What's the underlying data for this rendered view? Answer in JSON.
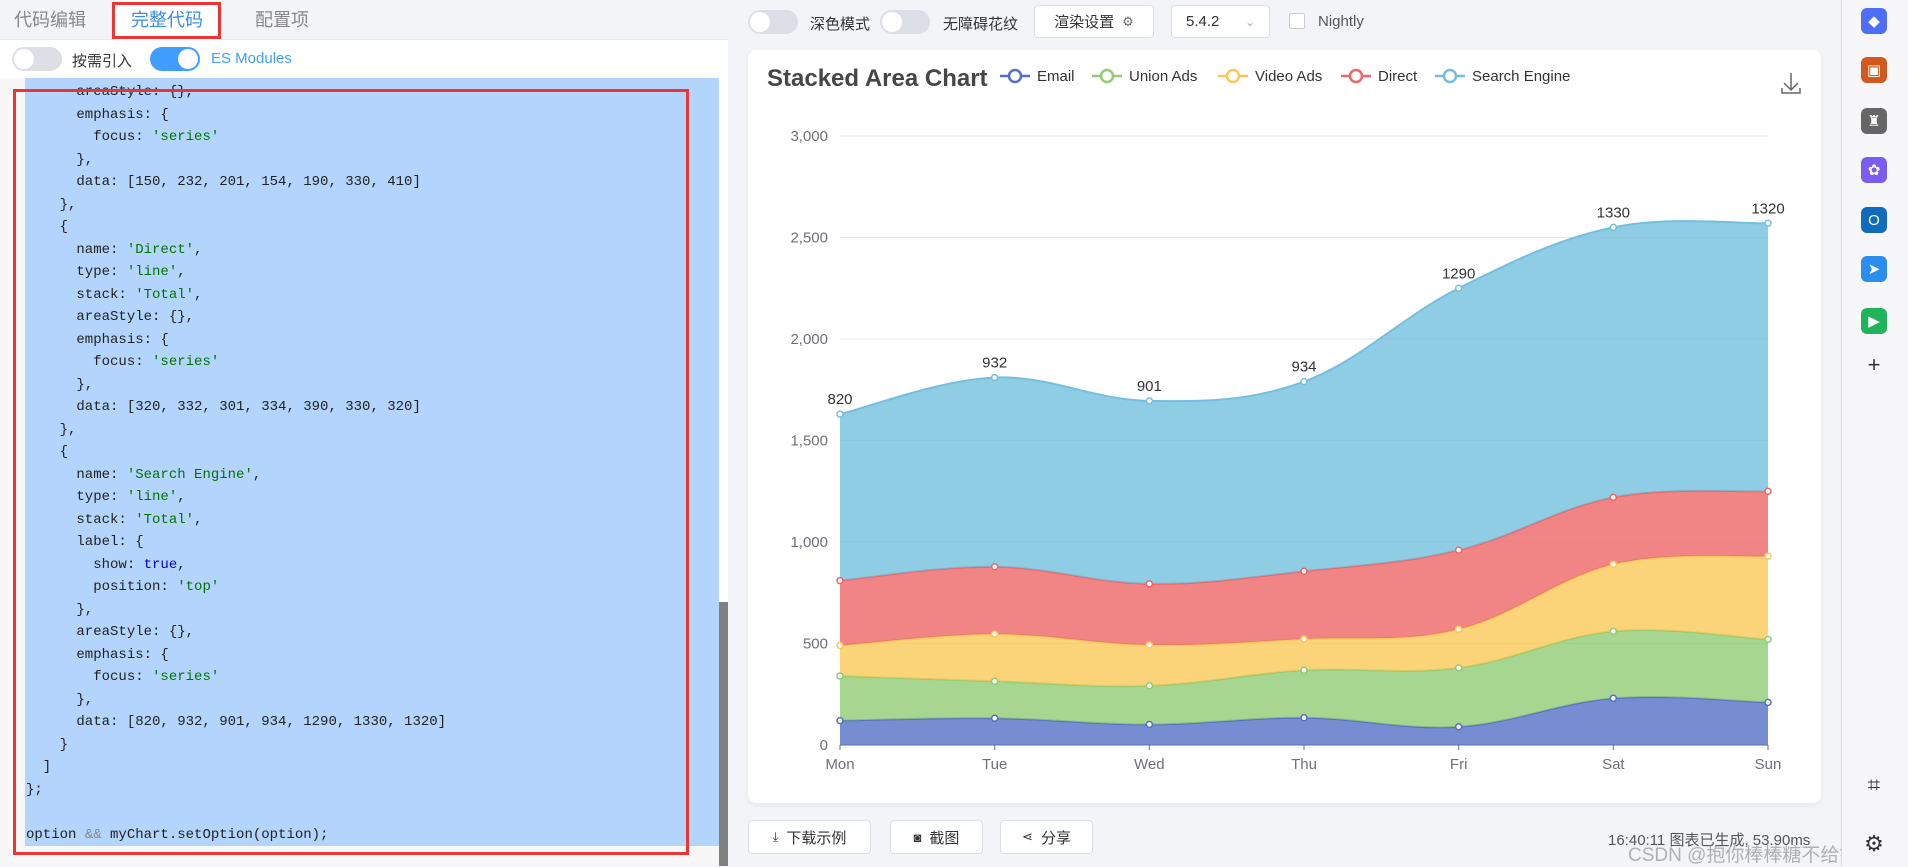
{
  "left_panel": {
    "tabs": [
      {
        "label": "代码编辑"
      },
      {
        "label": "完整代码",
        "active": true
      },
      {
        "label": "配置项"
      }
    ],
    "options": [
      {
        "label": "按需引入",
        "on": false
      },
      {
        "label": "ES Modules",
        "on": true
      }
    ],
    "code_lines": [
      "      areaStyle: {},",
      "      emphasis: {",
      "        focus: 'series'",
      "      },",
      "      data: [150, 232, 201, 154, 190, 330, 410]",
      "    },",
      "    {",
      "      name: 'Direct',",
      "      type: 'line',",
      "      stack: 'Total',",
      "      areaStyle: {},",
      "      emphasis: {",
      "        focus: 'series'",
      "      },",
      "      data: [320, 332, 301, 334, 390, 330, 320]",
      "    },",
      "    {",
      "      name: 'Search Engine',",
      "      type: 'line',",
      "      stack: 'Total',",
      "      label: {",
      "        show: true,",
      "        position: 'top'",
      "      },",
      "      areaStyle: {},",
      "      emphasis: {",
      "        focus: 'series'",
      "      },",
      "      data: [820, 932, 901, 934, 1290, 1330, 1320]",
      "    }",
      "  ]",
      "};",
      "",
      "option && myChart.setOption(option);"
    ]
  },
  "toolbar": {
    "dark_mode_label": "深色模式",
    "dark_mode_on": false,
    "aria_label": "无障碍花纹",
    "aria_on": false,
    "render_settings_label": "渲染设置",
    "version": "5.4.2",
    "nightly_label": "Nightly",
    "nightly_checked": false
  },
  "footer": {
    "download_label": "下载示例",
    "screenshot_label": "截图",
    "share_label": "分享",
    "status": "16:40:11  图表已生成, 53.90ms",
    "watermark": "CSDN @抱你棒棒糖不给钱"
  },
  "rail_icons": [
    "tag-icon",
    "toolbox-icon",
    "chess-icon",
    "copilot-icon",
    "outlook-icon",
    "send-icon",
    "play-icon",
    "add-icon",
    "screenshot-icon",
    "settings-icon"
  ],
  "chart_data": {
    "type": "area",
    "title": "Stacked Area Chart",
    "stacked": true,
    "categories": [
      "Mon",
      "Tue",
      "Wed",
      "Thu",
      "Fri",
      "Sat",
      "Sun"
    ],
    "ylim": [
      0,
      3000
    ],
    "yticks": [
      0,
      500,
      1000,
      1500,
      2000,
      2500,
      3000
    ],
    "ytick_labels": [
      "0",
      "500",
      "1,000",
      "1,500",
      "2,000",
      "2,500",
      "3,000"
    ],
    "legend_position": "top",
    "series": [
      {
        "name": "Email",
        "color": "#5470c6",
        "values": [
          120,
          132,
          101,
          134,
          90,
          230,
          210
        ]
      },
      {
        "name": "Union Ads",
        "color": "#91cc75",
        "values": [
          220,
          182,
          191,
          234,
          290,
          330,
          310
        ]
      },
      {
        "name": "Video Ads",
        "color": "#fac858",
        "values": [
          150,
          232,
          201,
          154,
          190,
          330,
          410
        ]
      },
      {
        "name": "Direct",
        "color": "#ee6666",
        "values": [
          320,
          332,
          301,
          334,
          390,
          330,
          320
        ]
      },
      {
        "name": "Search Engine",
        "color": "#73c0de",
        "values": [
          820,
          932,
          901,
          934,
          1290,
          1330,
          1320
        ],
        "show_labels": true
      }
    ]
  }
}
